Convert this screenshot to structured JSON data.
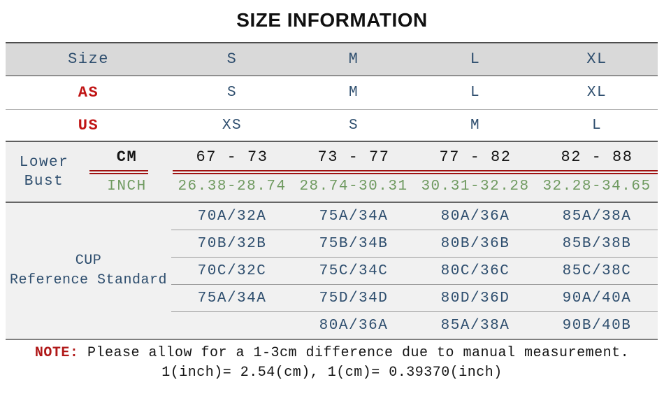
{
  "title": "SIZE INFORMATION",
  "table": {
    "header": {
      "label": "Size",
      "cols": [
        "S",
        "M",
        "L",
        "XL"
      ]
    },
    "as_row": {
      "label": "AS",
      "values": [
        "S",
        "M",
        "L",
        "XL"
      ]
    },
    "us_row": {
      "label": "US",
      "values": [
        "XS",
        "S",
        "M",
        "L"
      ]
    },
    "lower_bust": {
      "label_line1": "Lower",
      "label_line2": "Bust",
      "cm": {
        "label": "CM",
        "values": [
          "67 - 73",
          "73 - 77",
          "77 - 82",
          "82 - 88"
        ]
      },
      "inch": {
        "label": "INCH",
        "values": [
          "26.38-28.74",
          "28.74-30.31",
          "30.31-32.28",
          "32.28-34.65"
        ]
      }
    },
    "cup": {
      "label_line1": "CUP",
      "label_line2": "Reference Standard",
      "rows": [
        [
          "70A/32A",
          "75A/34A",
          "80A/36A",
          "85A/38A"
        ],
        [
          "70B/32B",
          "75B/34B",
          "80B/36B",
          "85B/38B"
        ],
        [
          "70C/32C",
          "75C/34C",
          "80C/36C",
          "85C/38C"
        ],
        [
          "75A/34A",
          "75D/34D",
          "80D/36D",
          "90A/40A"
        ],
        [
          "",
          "80A/36A",
          "85A/38A",
          "90B/40B"
        ]
      ]
    }
  },
  "note": {
    "prefix": "NOTE:",
    "body": "Please allow for a 1-3cm difference due to manual measurement.",
    "conversion": "1(inch)= 2.54(cm), 1(cm)= 0.39370(inch)"
  },
  "colors": {
    "accent_blue": "#2e4e6e",
    "accent_red": "#c01414",
    "green": "#6f9a60",
    "red_line": "#a01212",
    "header_bg": "#d9d9d9",
    "section_bg": "#efefef"
  }
}
